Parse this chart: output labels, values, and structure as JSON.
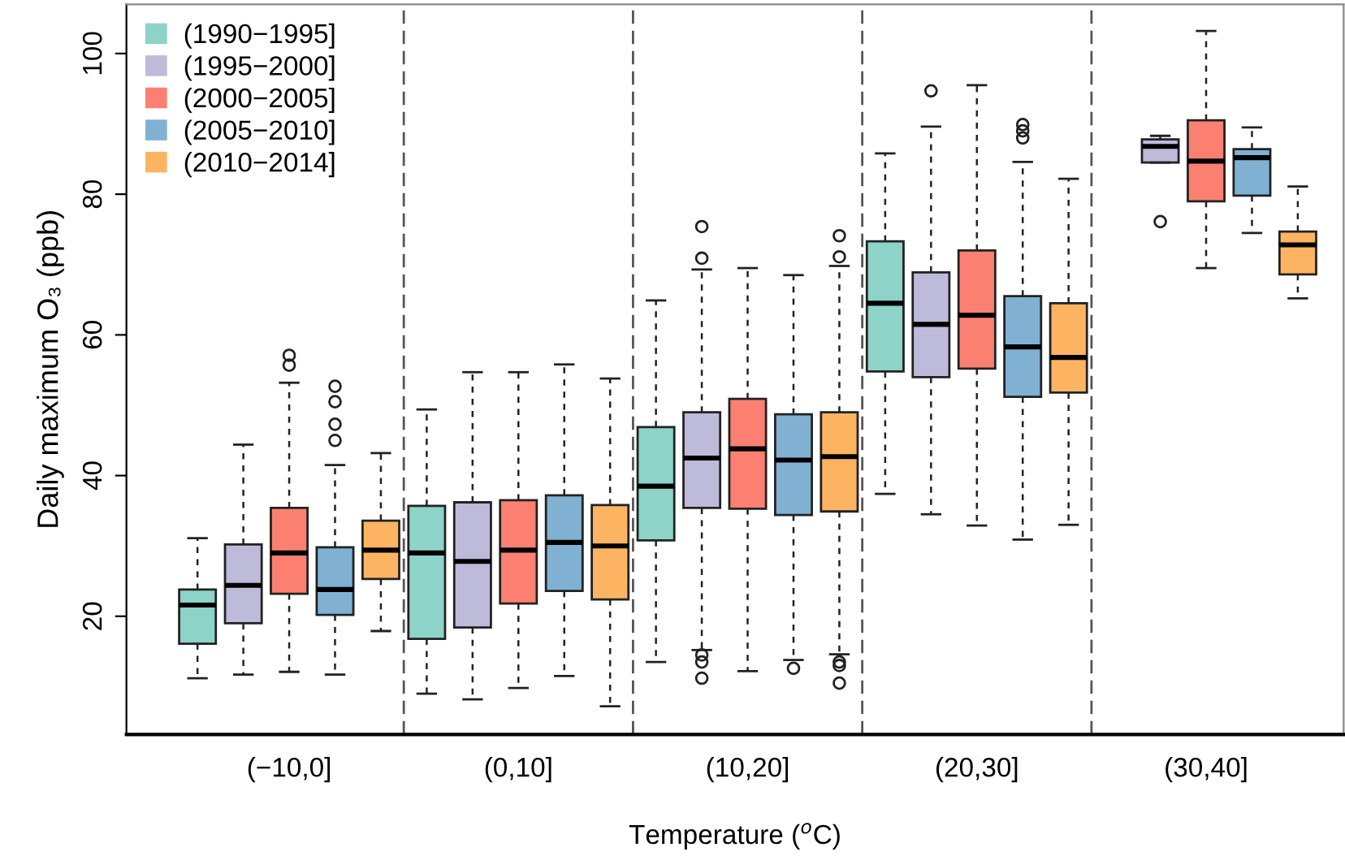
{
  "chart_data": {
    "type": "box",
    "xlabel": "Temperature ($^{o}$C)",
    "ylabel": "Daily maximum O₃ (ppb)",
    "categories": [
      "(−10,0]",
      "(0,10]",
      "(10,20]",
      "(20,30]",
      "(30,40]"
    ],
    "ylim": [
      3.2,
      107
    ],
    "yticks": [
      20,
      40,
      60,
      80,
      100
    ],
    "grid": "x",
    "legend": "top left",
    "series": [
      {
        "name": "(1990−1995]",
        "color": "#8dd3c7",
        "boxes": [
          {
            "low": 11.2,
            "q1": 16.1,
            "median": 21.6,
            "q3": 23.8,
            "high": 31.1
          },
          {
            "low": 9.0,
            "q1": 16.8,
            "median": 29.0,
            "q3": 35.7,
            "high": 49.4
          },
          {
            "low": 13.5,
            "q1": 30.8,
            "median": 38.5,
            "q3": 46.9,
            "high": 64.9
          },
          {
            "low": 37.4,
            "q1": 54.8,
            "median": 64.5,
            "q3": 73.3,
            "high": 85.8
          },
          null
        ]
      },
      {
        "name": "(1995−2000]",
        "color": "#bebada",
        "boxes": [
          {
            "low": 11.7,
            "q1": 19.0,
            "median": 24.4,
            "q3": 30.2,
            "high": 44.4
          },
          {
            "low": 8.2,
            "q1": 18.4,
            "median": 27.8,
            "q3": 36.2,
            "high": 54.7
          },
          {
            "low": 15.2,
            "q1": 35.4,
            "median": 42.5,
            "q3": 49.0,
            "high": 69.3,
            "outliers": [
              75.4,
              70.9,
              14.5,
              13.5,
              11.2
            ]
          },
          {
            "low": 34.5,
            "q1": 54.0,
            "median": 61.5,
            "q3": 68.9,
            "high": 89.6,
            "outliers": [
              94.7
            ]
          },
          {
            "low": 84.5,
            "q1": 84.5,
            "median": 86.8,
            "q3": 87.8,
            "high": 88.3,
            "outliers": [
              76.1
            ]
          }
        ]
      },
      {
        "name": "(2000−2005]",
        "color": "#fb8072",
        "boxes": [
          {
            "low": 12.1,
            "q1": 23.2,
            "median": 29.0,
            "q3": 35.4,
            "high": 53.2,
            "outliers": [
              57.1,
              55.7
            ]
          },
          {
            "low": 9.8,
            "q1": 21.8,
            "median": 29.4,
            "q3": 36.5,
            "high": 54.7
          },
          {
            "low": 12.2,
            "q1": 35.3,
            "median": 43.8,
            "q3": 50.9,
            "high": 69.5
          },
          {
            "low": 32.9,
            "q1": 55.2,
            "median": 62.8,
            "q3": 72.0,
            "high": 95.5
          },
          {
            "low": 69.5,
            "q1": 79.0,
            "median": 84.7,
            "q3": 90.5,
            "high": 103.2
          }
        ]
      },
      {
        "name": "(2005−2010]",
        "color": "#80b1d3",
        "boxes": [
          {
            "low": 11.7,
            "q1": 20.2,
            "median": 23.8,
            "q3": 29.8,
            "high": 41.5,
            "outliers": [
              52.7,
              50.5,
              47.3,
              45.0
            ]
          },
          {
            "low": 11.5,
            "q1": 23.6,
            "median": 30.5,
            "q3": 37.2,
            "high": 55.8
          },
          {
            "low": 13.8,
            "q1": 34.4,
            "median": 42.2,
            "q3": 48.7,
            "high": 68.5,
            "outliers": [
              12.6
            ]
          },
          {
            "low": 30.9,
            "q1": 51.2,
            "median": 58.3,
            "q3": 65.5,
            "high": 84.6,
            "outliers": [
              89.9,
              89.0,
              88.0
            ]
          },
          {
            "low": 74.5,
            "q1": 79.8,
            "median": 85.2,
            "q3": 86.4,
            "high": 89.5
          }
        ]
      },
      {
        "name": "(2010−2014]",
        "color": "#fdb462",
        "boxes": [
          {
            "low": 17.9,
            "q1": 25.3,
            "median": 29.4,
            "q3": 33.6,
            "high": 43.2
          },
          {
            "low": 7.2,
            "q1": 22.4,
            "median": 30.0,
            "q3": 35.8,
            "high": 53.8
          },
          {
            "low": 14.6,
            "q1": 34.9,
            "median": 42.7,
            "q3": 49.0,
            "high": 69.8,
            "outliers": [
              74.1,
              71.1,
              13.5,
              13.0,
              10.5
            ]
          },
          {
            "low": 33.0,
            "q1": 51.8,
            "median": 56.8,
            "q3": 64.5,
            "high": 82.2
          },
          {
            "low": 65.2,
            "q1": 68.6,
            "median": 72.8,
            "q3": 74.7,
            "high": 81.1
          }
        ]
      }
    ]
  }
}
